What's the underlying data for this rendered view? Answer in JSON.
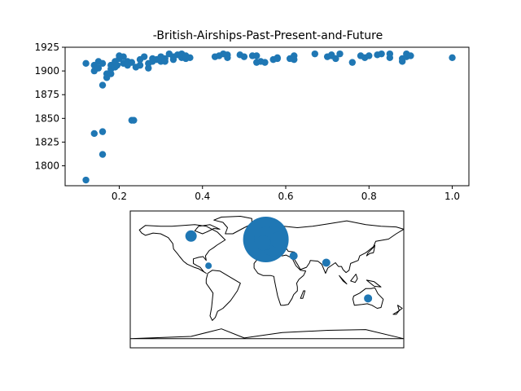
{
  "chart_data": [
    {
      "type": "scatter",
      "title": "-British-Airships-Past-Present-and-Future",
      "xlabel": "",
      "ylabel": "",
      "xlim": [
        0.07,
        1.04
      ],
      "ylim": [
        1779,
        1925
      ],
      "xticks": [
        0.2,
        0.4,
        0.6,
        0.8,
        1.0
      ],
      "xtick_labels": [
        "0.2",
        "0.4",
        "0.6",
        "0.8",
        "1.0"
      ],
      "yticks": [
        1800,
        1825,
        1850,
        1875,
        1900,
        1925
      ],
      "ytick_labels": [
        "1800",
        "1825",
        "1850",
        "1875",
        "1900",
        "1925"
      ],
      "grid": false,
      "color": "#1f77b4",
      "points": [
        [
          0.12,
          1785
        ],
        [
          0.16,
          1812
        ],
        [
          0.14,
          1834
        ],
        [
          0.16,
          1836
        ],
        [
          0.23,
          1848
        ],
        [
          0.235,
          1848
        ],
        [
          0.12,
          1908
        ],
        [
          0.14,
          1900
        ],
        [
          0.14,
          1906
        ],
        [
          0.15,
          1903
        ],
        [
          0.15,
          1910
        ],
        [
          0.16,
          1908
        ],
        [
          0.16,
          1885
        ],
        [
          0.17,
          1893
        ],
        [
          0.17,
          1897
        ],
        [
          0.18,
          1897
        ],
        [
          0.18,
          1902
        ],
        [
          0.18,
          1906
        ],
        [
          0.19,
          1904
        ],
        [
          0.19,
          1910
        ],
        [
          0.195,
          1906
        ],
        [
          0.2,
          1913
        ],
        [
          0.2,
          1916
        ],
        [
          0.21,
          1915
        ],
        [
          0.21,
          1908
        ],
        [
          0.22,
          1910
        ],
        [
          0.22,
          1906
        ],
        [
          0.23,
          1909
        ],
        [
          0.24,
          1904
        ],
        [
          0.25,
          1906
        ],
        [
          0.25,
          1912
        ],
        [
          0.26,
          1915
        ],
        [
          0.27,
          1903
        ],
        [
          0.27,
          1908
        ],
        [
          0.28,
          1910
        ],
        [
          0.28,
          1913
        ],
        [
          0.29,
          1912
        ],
        [
          0.3,
          1910
        ],
        [
          0.3,
          1915
        ],
        [
          0.31,
          1913
        ],
        [
          0.31,
          1910
        ],
        [
          0.32,
          1918
        ],
        [
          0.33,
          1915
        ],
        [
          0.33,
          1912
        ],
        [
          0.34,
          1917
        ],
        [
          0.35,
          1914
        ],
        [
          0.35,
          1918
        ],
        [
          0.36,
          1913
        ],
        [
          0.36,
          1916
        ],
        [
          0.37,
          1914
        ],
        [
          0.43,
          1915
        ],
        [
          0.44,
          1916
        ],
        [
          0.45,
          1918
        ],
        [
          0.46,
          1917
        ],
        [
          0.46,
          1914
        ],
        [
          0.49,
          1917
        ],
        [
          0.5,
          1915
        ],
        [
          0.52,
          1916
        ],
        [
          0.53,
          1916
        ],
        [
          0.53,
          1909
        ],
        [
          0.54,
          1910
        ],
        [
          0.55,
          1909
        ],
        [
          0.57,
          1912
        ],
        [
          0.58,
          1914
        ],
        [
          0.58,
          1913
        ],
        [
          0.61,
          1913
        ],
        [
          0.62,
          1916
        ],
        [
          0.62,
          1912
        ],
        [
          0.67,
          1918
        ],
        [
          0.7,
          1915
        ],
        [
          0.71,
          1916
        ],
        [
          0.71,
          1917
        ],
        [
          0.72,
          1913
        ],
        [
          0.73,
          1918
        ],
        [
          0.76,
          1909
        ],
        [
          0.78,
          1916
        ],
        [
          0.79,
          1914
        ],
        [
          0.8,
          1916
        ],
        [
          0.82,
          1917
        ],
        [
          0.83,
          1918
        ],
        [
          0.85,
          1918
        ],
        [
          0.85,
          1914
        ],
        [
          0.88,
          1910
        ],
        [
          0.88,
          1913
        ],
        [
          0.89,
          1915
        ],
        [
          0.89,
          1918
        ],
        [
          0.9,
          1916
        ],
        [
          1.0,
          1914
        ]
      ]
    },
    {
      "type": "bubble-map",
      "title": "",
      "projection": "equirectangular",
      "lon_range": [
        -180,
        180
      ],
      "lat_range": [
        -90,
        90
      ],
      "color": "#1f77b4",
      "points": [
        {
          "lon": -1.5,
          "lat": 52.5,
          "size": 28
        },
        {
          "lon": 8,
          "lat": 50,
          "size": 18
        },
        {
          "lon": -2,
          "lat": 54,
          "size": 14
        },
        {
          "lon": 15,
          "lat": 52,
          "size": 10
        },
        {
          "lon": -5,
          "lat": 48,
          "size": 9
        },
        {
          "lon": 35,
          "lat": 31,
          "size": 5
        },
        {
          "lon": 78,
          "lat": 22,
          "size": 5
        },
        {
          "lon": -100,
          "lat": 57,
          "size": 7
        },
        {
          "lon": -77,
          "lat": 18,
          "size": 4
        },
        {
          "lon": 133,
          "lat": -25,
          "size": 5
        }
      ],
      "landmass_names": [
        "North America",
        "Greenland",
        "South America",
        "Eurasia",
        "Africa",
        "Australia",
        "Antarctica"
      ]
    }
  ]
}
